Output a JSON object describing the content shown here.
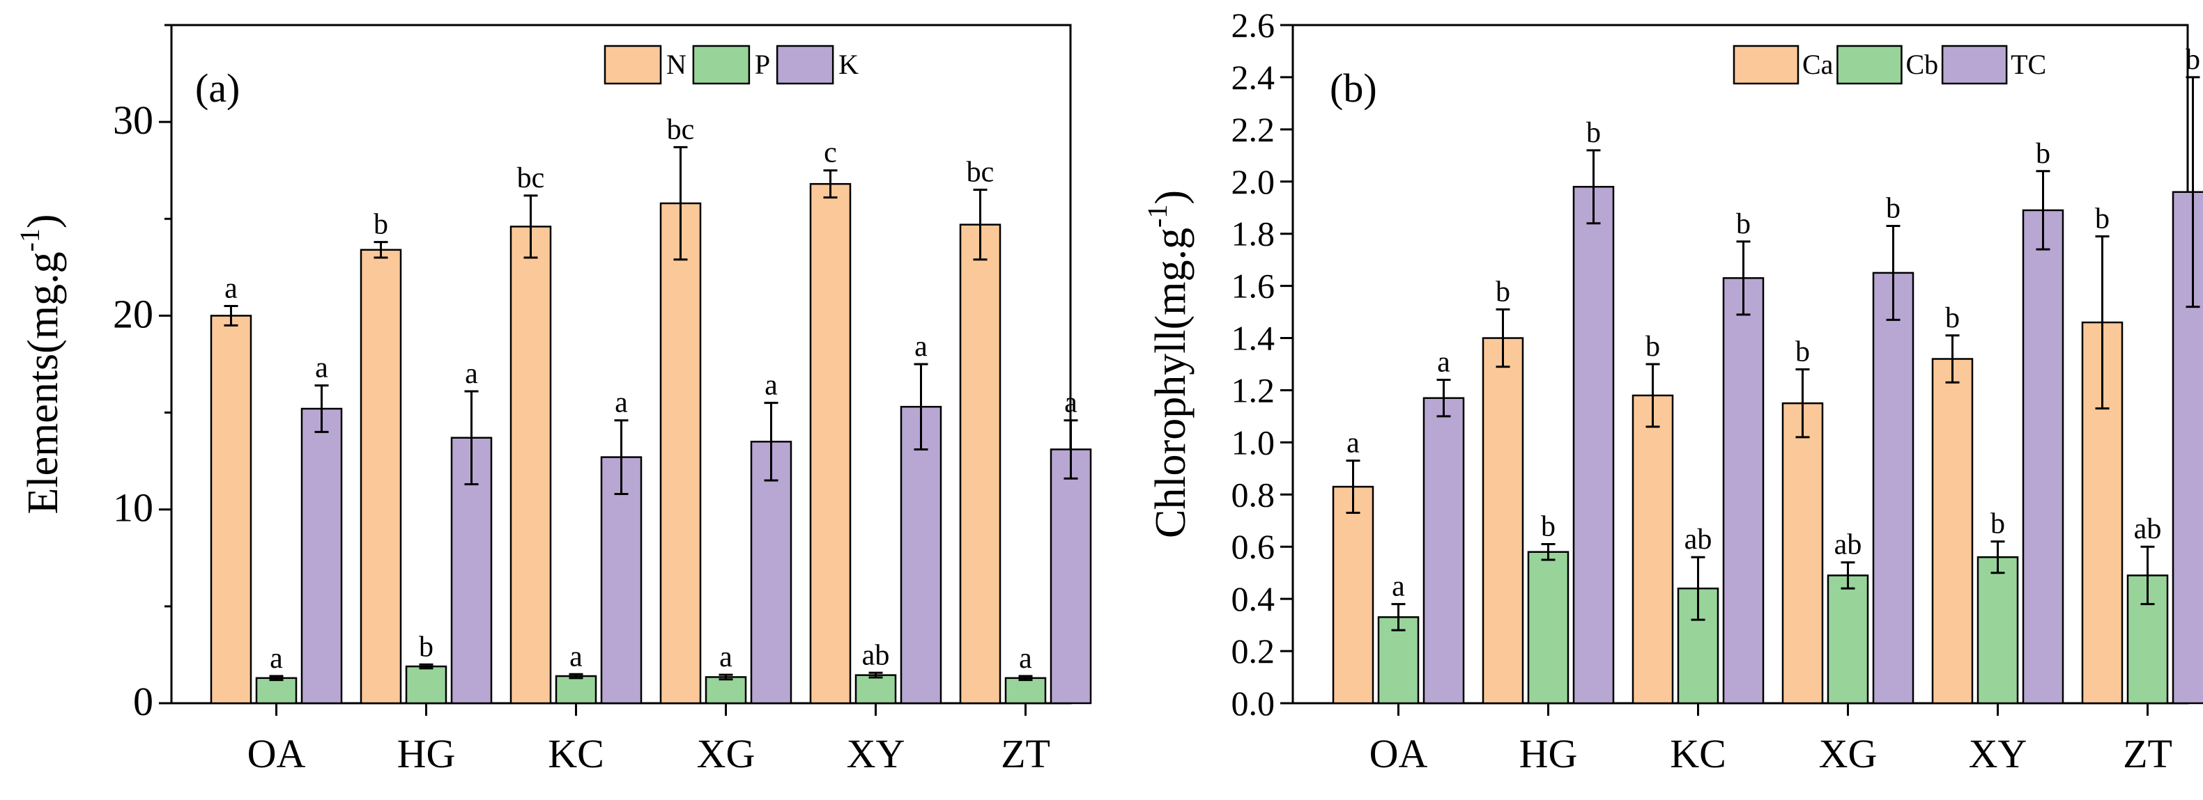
{
  "chart_data": [
    {
      "type": "bar",
      "panel_label": "(a)",
      "ylabel": "Elements(mg.g",
      "ylabel_sup": "-1",
      "ylabel_close": ")",
      "ylim": [
        0,
        35
      ],
      "yticks": [
        0,
        10,
        20,
        30
      ],
      "categories": [
        "OA",
        "HG",
        "KC",
        "XG",
        "XY",
        "ZT"
      ],
      "legend_position": "top-right",
      "series": [
        {
          "name": "N",
          "color": "#FBC899",
          "values": [
            20.0,
            23.4,
            24.6,
            25.8,
            26.8,
            24.7
          ],
          "errors": [
            0.5,
            0.4,
            1.6,
            2.9,
            0.7,
            1.8
          ],
          "labels": [
            "a",
            "b",
            "bc",
            "bc",
            "c",
            "bc"
          ]
        },
        {
          "name": "P",
          "color": "#98D49A",
          "values": [
            1.3,
            1.9,
            1.4,
            1.35,
            1.45,
            1.3
          ],
          "errors": [
            0.1,
            0.1,
            0.1,
            0.12,
            0.12,
            0.1
          ],
          "labels": [
            "a",
            "b",
            "a",
            "a",
            "ab",
            "a"
          ]
        },
        {
          "name": "K",
          "color": "#B8A7D2",
          "values": [
            15.2,
            13.7,
            12.7,
            13.5,
            15.3,
            13.1
          ],
          "errors": [
            1.2,
            2.4,
            1.9,
            2.0,
            2.2,
            1.5
          ],
          "labels": [
            "a",
            "a",
            "a",
            "a",
            "a",
            "a"
          ]
        }
      ]
    },
    {
      "type": "bar",
      "panel_label": "(b)",
      "ylabel": "Chlorophyll(mg.g",
      "ylabel_sup": "-1",
      "ylabel_close": ")",
      "ylim": [
        0,
        2.6
      ],
      "yticks": [
        "0.0",
        "0.2",
        "0.4",
        "0.6",
        "0.8",
        "1.0",
        "1.2",
        "1.4",
        "1.6",
        "1.8",
        "2.0",
        "2.2",
        "2.4",
        "2.6"
      ],
      "categories": [
        "OA",
        "HG",
        "KC",
        "XG",
        "XY",
        "ZT"
      ],
      "legend_position": "top-right",
      "series": [
        {
          "name": "Ca",
          "color": "#FBC899",
          "values": [
            0.83,
            1.4,
            1.18,
            1.15,
            1.32,
            1.46
          ],
          "errors": [
            0.1,
            0.11,
            0.12,
            0.13,
            0.09,
            0.33
          ],
          "labels": [
            "a",
            "b",
            "b",
            "b",
            "b",
            "b"
          ]
        },
        {
          "name": "Cb",
          "color": "#98D49A",
          "values": [
            0.33,
            0.58,
            0.44,
            0.49,
            0.56,
            0.49
          ],
          "errors": [
            0.05,
            0.03,
            0.12,
            0.05,
            0.06,
            0.11
          ],
          "labels": [
            "a",
            "b",
            "ab",
            "ab",
            "b",
            "ab"
          ]
        },
        {
          "name": "TC",
          "color": "#B8A7D2",
          "values": [
            1.17,
            1.98,
            1.63,
            1.65,
            1.89,
            1.96
          ],
          "errors": [
            0.07,
            0.14,
            0.14,
            0.18,
            0.15,
            0.44
          ],
          "labels": [
            "a",
            "b",
            "b",
            "b",
            "b",
            "b"
          ]
        }
      ]
    }
  ]
}
